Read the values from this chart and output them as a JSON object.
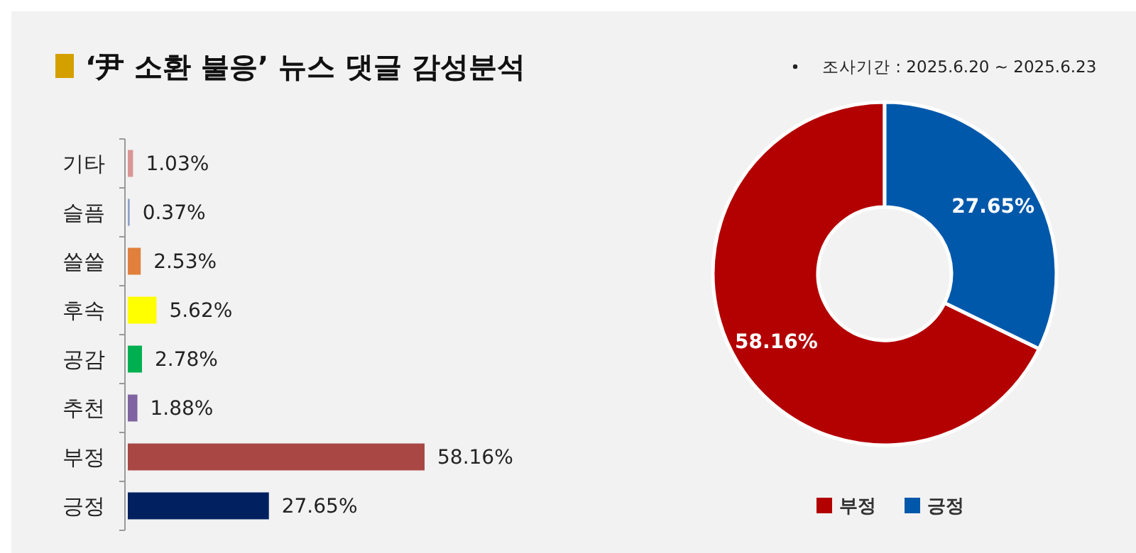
{
  "chart_data": [
    {
      "type": "bar",
      "orientation": "horizontal",
      "title": "‘尹 소환 불응’ 뉴스 댓글 감성분석",
      "categories": [
        "기타",
        "슬픔",
        "쓸쓸",
        "후속",
        "공감",
        "추천",
        "부정",
        "긍정"
      ],
      "values": [
        1.03,
        0.37,
        2.53,
        5.62,
        2.78,
        1.88,
        58.16,
        27.65
      ],
      "value_labels": [
        "1.03%",
        "0.37%",
        "2.53%",
        "5.62%",
        "2.78%",
        "1.88%",
        "58.16%",
        "27.65%"
      ],
      "colors": [
        "#d99694",
        "#8e9fc9",
        "#e0803c",
        "#ffff00",
        "#00b050",
        "#8064a2",
        "#a84744",
        "#002060"
      ]
    },
    {
      "type": "donut",
      "annotations": [
        "조사기간 : 2025.6.20 ~ 2025.6.23"
      ],
      "categories": [
        "부정",
        "긍정"
      ],
      "values": [
        58.16,
        27.65
      ],
      "value_labels": [
        "58.16%",
        "27.65%"
      ],
      "colors": [
        "#b30000",
        "#0058aa"
      ],
      "legend": "bottom"
    }
  ]
}
